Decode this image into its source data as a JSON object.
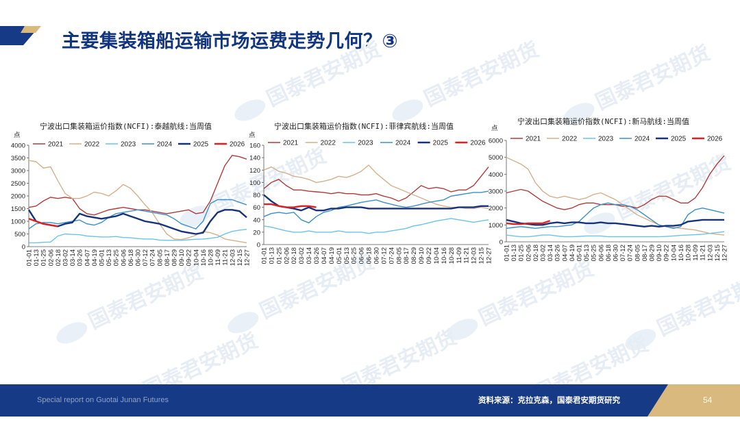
{
  "slide": {
    "title": "主要集装箱船运输市场运费走势几何？③",
    "watermark": "国泰君安期货",
    "footer_left": "Special report on Guotai Junan Futures",
    "source": "资料来源：克拉克森，国泰君安期货研究",
    "page_number": "54"
  },
  "colors": {
    "2021": "#b03a3a",
    "2022": "#d4b18c",
    "2023": "#6ac3e8",
    "2024": "#3a8fc8",
    "2025": "#16327a",
    "2026": "#e02020",
    "brand_blue": "#163a86",
    "brand_gold": "#d9b97d"
  },
  "chart_data": [
    {
      "type": "line",
      "title": "宁波出口集装箱运价指数(NCFI):泰越航线:当周值",
      "ylabel": "点",
      "ylim": [
        0,
        4000
      ],
      "yticks": [
        "0",
        "500",
        "1000",
        "1500",
        "2000",
        "2500",
        "3000",
        "3500",
        "4000"
      ],
      "xticks": [
        "01-01",
        "01-13",
        "01-25",
        "02-06",
        "02-18",
        "03-02",
        "03-14",
        "03-26",
        "04-07",
        "04-19",
        "05-01",
        "05-13",
        "05-25",
        "06-06",
        "06-18",
        "06-30",
        "07-12",
        "07-24",
        "08-05",
        "08-17",
        "08-29",
        "09-10",
        "09-22",
        "10-04",
        "10-16",
        "10-28",
        "11-09",
        "11-21",
        "12-03",
        "12-15",
        "12-27"
      ],
      "series": [
        {
          "name": "2021",
          "values": [
            1550,
            1600,
            1800,
            1950,
            1900,
            1950,
            1900,
            1500,
            1300,
            1250,
            1350,
            1450,
            1500,
            1550,
            1500,
            1450,
            1450,
            1400,
            1350,
            1300,
            1350,
            1400,
            1450,
            1300,
            1350,
            1800,
            2500,
            3200,
            3600,
            3550,
            3450
          ]
        },
        {
          "name": "2022",
          "values": [
            3400,
            3350,
            3100,
            3150,
            2600,
            2100,
            1900,
            1900,
            2000,
            2150,
            2100,
            2000,
            2200,
            2450,
            2300,
            2000,
            1650,
            1350,
            900,
            500,
            300,
            280,
            350,
            450,
            600,
            550,
            450,
            300,
            250,
            200,
            150
          ]
        },
        {
          "name": "2023",
          "values": [
            150,
            150,
            170,
            180,
            420,
            500,
            480,
            470,
            420,
            400,
            380,
            380,
            400,
            360,
            350,
            320,
            300,
            300,
            260,
            250,
            250,
            250,
            270,
            290,
            300,
            330,
            370,
            500,
            600,
            650,
            680
          ]
        },
        {
          "name": "2024",
          "values": [
            700,
            900,
            950,
            950,
            900,
            950,
            1000,
            1050,
            900,
            850,
            950,
            1150,
            1300,
            1350,
            1400,
            1450,
            1400,
            1350,
            1300,
            1250,
            1100,
            900,
            800,
            700,
            1000,
            1700,
            1850,
            1850,
            1850,
            1750,
            1650
          ]
        },
        {
          "name": "2025",
          "values": [
            1450,
            1000,
            900,
            850,
            800,
            900,
            950,
            1300,
            1200,
            1150,
            1100,
            1150,
            1200,
            1300,
            1200,
            1100,
            1000,
            950,
            900,
            800,
            700,
            600,
            550,
            500,
            550,
            1000,
            1350,
            1450,
            1450,
            1400,
            1150
          ]
        },
        {
          "name": "2026",
          "values": [
            1100,
            1000,
            900,
            850,
            800
          ]
        }
      ]
    },
    {
      "type": "line",
      "title": "宁波出口集装箱运价指数(NCFI):菲律宾航线:当周值",
      "ylabel": "点",
      "ylim": [
        0,
        160
      ],
      "yticks": [
        "0",
        "20",
        "40",
        "60",
        "80",
        "100",
        "120",
        "140",
        "160"
      ],
      "xticks": [
        "01-01",
        "01-13",
        "01-25",
        "02-06",
        "02-18",
        "03-02",
        "03-14",
        "03-26",
        "04-07",
        "04-19",
        "05-01",
        "05-13",
        "05-25",
        "06-06",
        "06-18",
        "06-30",
        "07-12",
        "07-24",
        "08-05",
        "08-17",
        "08-29",
        "09-10",
        "09-22",
        "10-04",
        "10-16",
        "10-28",
        "11-09",
        "11-21",
        "12-03",
        "12-15",
        "12-27"
      ],
      "series": [
        {
          "name": "2021",
          "values": [
            90,
            100,
            105,
            95,
            88,
            88,
            86,
            85,
            84,
            82,
            84,
            82,
            82,
            80,
            80,
            82,
            78,
            75,
            70,
            75,
            85,
            95,
            90,
            92,
            90,
            85,
            88,
            88,
            95,
            110,
            125
          ]
        },
        {
          "name": "2022",
          "values": [
            120,
            125,
            118,
            115,
            110,
            108,
            105,
            100,
            102,
            105,
            110,
            108,
            112,
            118,
            128,
            115,
            105,
            95,
            90,
            85,
            80,
            75,
            70,
            65,
            62,
            60,
            60,
            58,
            58,
            60,
            58
          ]
        },
        {
          "name": "2023",
          "values": [
            30,
            28,
            25,
            22,
            20,
            20,
            22,
            20,
            20,
            20,
            22,
            20,
            20,
            20,
            18,
            20,
            20,
            22,
            24,
            26,
            30,
            32,
            35,
            38,
            40,
            42,
            40,
            38,
            36,
            38,
            40
          ]
        },
        {
          "name": "2024",
          "values": [
            45,
            50,
            52,
            50,
            52,
            40,
            35,
            45,
            52,
            55,
            60,
            62,
            65,
            68,
            70,
            72,
            68,
            65,
            62,
            60,
            62,
            65,
            68,
            70,
            72,
            78,
            80,
            82,
            84,
            84,
            86
          ]
        },
        {
          "name": "2025",
          "values": [
            80,
            70,
            62,
            60,
            58,
            55,
            60,
            55,
            55,
            58,
            58,
            60,
            60,
            60,
            58,
            58,
            58,
            58,
            58,
            58,
            58,
            58,
            58,
            58,
            58,
            58,
            60,
            60,
            60,
            62,
            62
          ]
        },
        {
          "name": "2026",
          "values": [
            65,
            65,
            62,
            60,
            60,
            62,
            62,
            60
          ]
        }
      ]
    },
    {
      "type": "line",
      "title": "宁波出口集装箱运价指数(NCFI):新马航线:当周值",
      "ylabel": "点",
      "ylim": [
        0,
        6000
      ],
      "yticks": [
        "0",
        "1000",
        "2000",
        "3000",
        "4000",
        "5000",
        "6000"
      ],
      "xticks": [
        "01-01",
        "01-13",
        "01-25",
        "02-06",
        "02-18",
        "03-02",
        "03-14",
        "03-26",
        "04-07",
        "04-19",
        "05-01",
        "05-13",
        "05-25",
        "06-06",
        "06-18",
        "06-30",
        "07-12",
        "07-24",
        "08-05",
        "08-17",
        "08-29",
        "09-10",
        "09-22",
        "10-04",
        "10-16",
        "10-28",
        "11-09",
        "11-21",
        "12-03",
        "12-15",
        "12-27"
      ],
      "series": [
        {
          "name": "2021",
          "values": [
            2900,
            3000,
            3100,
            3000,
            2700,
            2400,
            2200,
            2000,
            1900,
            2000,
            2200,
            2300,
            2300,
            2200,
            2200,
            2200,
            2100,
            2100,
            2000,
            2200,
            2500,
            2700,
            2700,
            2500,
            2300,
            2300,
            2600,
            3200,
            4000,
            4600,
            5100
          ]
        },
        {
          "name": "2022",
          "values": [
            5000,
            4800,
            4600,
            4300,
            3500,
            3000,
            2700,
            2600,
            2700,
            2600,
            2500,
            2600,
            2800,
            2900,
            2700,
            2500,
            2200,
            1900,
            1600,
            1400,
            1200,
            1000,
            900,
            850,
            800,
            750,
            700,
            600,
            500,
            450,
            400
          ]
        },
        {
          "name": "2023",
          "values": [
            400,
            350,
            300,
            300,
            350,
            400,
            400,
            350,
            300,
            300,
            320,
            350,
            350,
            350,
            300,
            300,
            300,
            300,
            300,
            300,
            300,
            300,
            320,
            350,
            380,
            400,
            420,
            450,
            500,
            550,
            600
          ]
        },
        {
          "name": "2024",
          "values": [
            800,
            850,
            900,
            850,
            800,
            850,
            900,
            900,
            950,
            1000,
            1200,
            1600,
            2000,
            2200,
            2300,
            2200,
            2200,
            2100,
            1900,
            1600,
            1300,
            1000,
            900,
            800,
            900,
            1600,
            1900,
            2000,
            1900,
            1800,
            1700
          ]
        },
        {
          "name": "2025",
          "values": [
            1300,
            1200,
            1100,
            1050,
            1000,
            1000,
            1100,
            1150,
            1100,
            1150,
            1150,
            1100,
            1100,
            1150,
            1100,
            1100,
            1050,
            1000,
            950,
            900,
            950,
            900,
            950,
            950,
            1000,
            1200,
            1250,
            1300,
            1300,
            1300,
            1300
          ]
        },
        {
          "name": "2026",
          "values": [
            1100,
            1050,
            1050,
            1100,
            1100,
            1100,
            1250
          ]
        }
      ]
    }
  ]
}
